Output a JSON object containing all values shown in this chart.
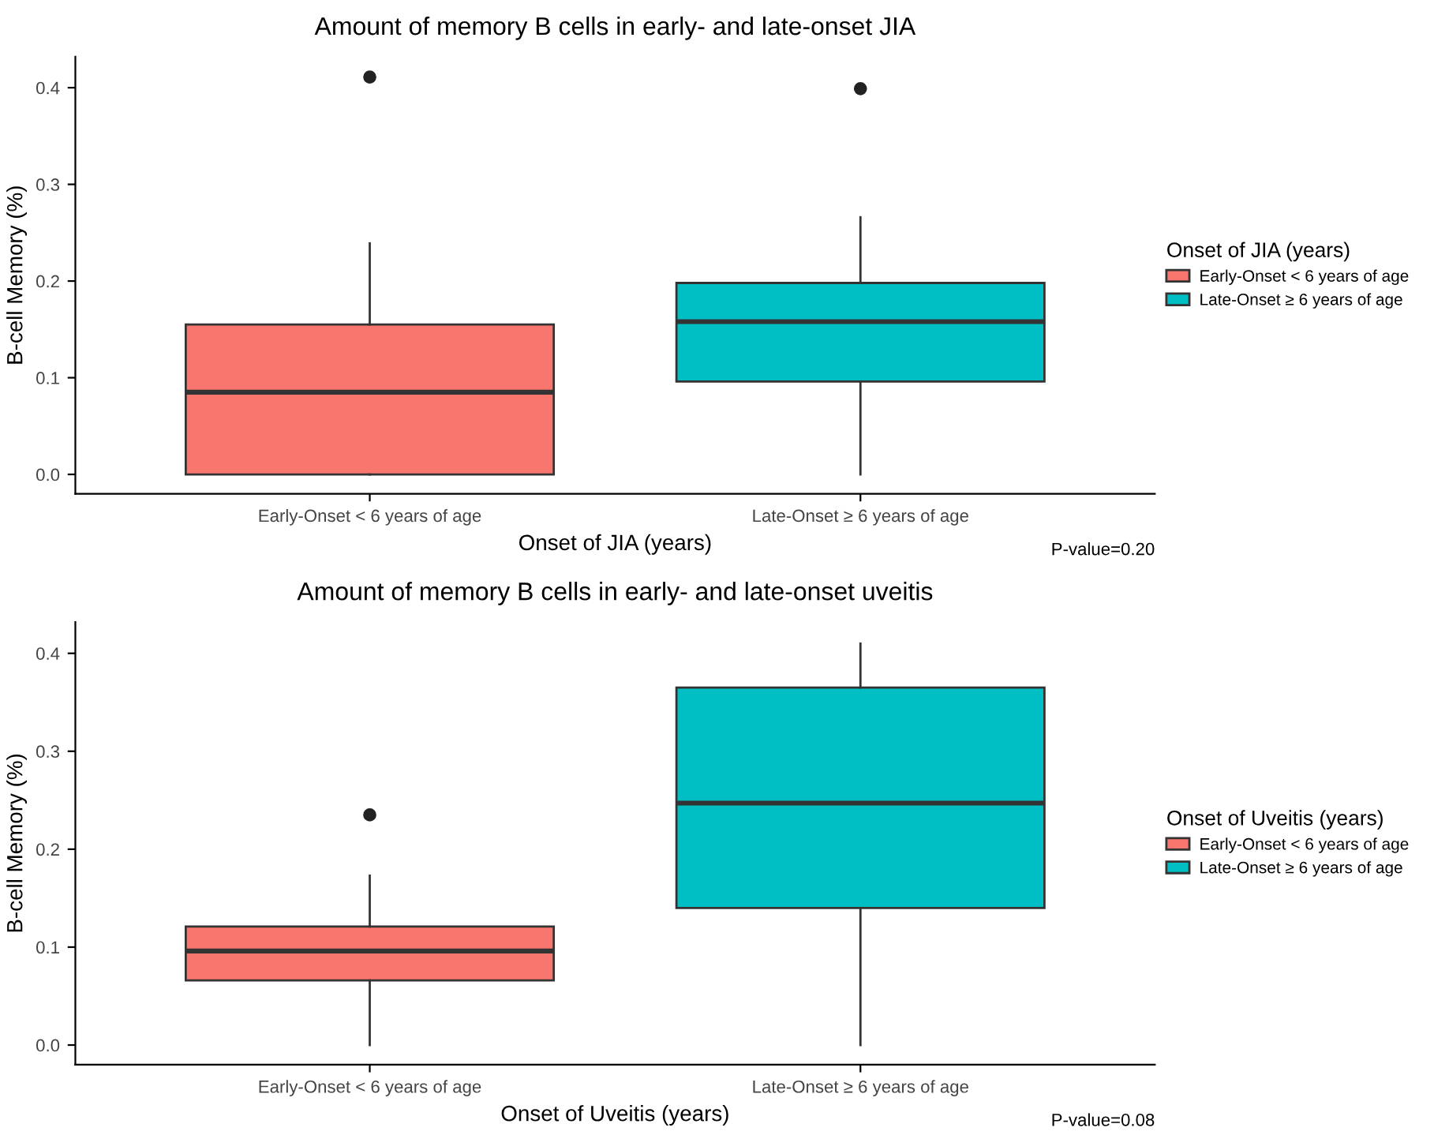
{
  "chart_data": [
    {
      "type": "box",
      "title": "Amount of memory B cells in early- and late-onset JIA",
      "xlabel": "Onset of JIA (years)",
      "ylabel": "B-cell Memory (%)",
      "legend_title": "Onset of JIA (years)",
      "legend": "right",
      "categories": [
        "Early-Onset < 6 years of age",
        "Late-Onset ≥ 6 years of age"
      ],
      "series": [
        {
          "name": "Early-Onset < 6 years of age",
          "color": "#f8766d",
          "boxes": [
            {
              "low": 0.0,
              "q1": 0.0,
              "median": 0.085,
              "q3": 0.155,
              "high": 0.239,
              "outliers": [
                0.411
              ]
            },
            null
          ]
        },
        {
          "name": "Late-Onset ≥ 6 years of age",
          "color": "#00bfc4",
          "boxes": [
            null,
            {
              "low": 0.0,
              "q1": 0.096,
              "median": 0.158,
              "q3": 0.198,
              "high": 0.266,
              "outliers": [
                0.399
              ]
            }
          ]
        }
      ],
      "ylim": [
        -0.02,
        0.432
      ],
      "yticks": [
        {
          "value": 0,
          "label": "0.0"
        },
        0.1,
        0.2,
        0.3,
        0.4
      ],
      "annotations": [
        "P-value=0.20"
      ]
    },
    {
      "type": "box",
      "title": "Amount of memory B cells in early- and late-onset uveitis",
      "xlabel": "Onset of Uveitis (years)",
      "ylabel": "B-cell Memory (%)",
      "legend_title": "Onset of Uveitis (years)",
      "legend": "right",
      "categories": [
        "Early-Onset < 6 years of age",
        "Late-Onset ≥ 6 years of age"
      ],
      "series": [
        {
          "name": "Early-Onset < 6 years of age",
          "color": "#f8766d",
          "boxes": [
            {
              "low": 0.0,
              "q1": 0.066,
              "median": 0.096,
              "q3": 0.121,
              "high": 0.173,
              "outliers": [
                0.235
              ]
            },
            null
          ]
        },
        {
          "name": "Late-Onset ≥ 6 years of age",
          "color": "#00bfc4",
          "boxes": [
            null,
            {
              "low": 0.0,
              "q1": 0.14,
              "median": 0.247,
              "q3": 0.365,
              "high": 0.41
            }
          ]
        }
      ],
      "ylim": [
        -0.02,
        0.432
      ],
      "yticks": [
        {
          "value": 0,
          "label": "0.0"
        },
        0.1,
        0.2,
        0.3,
        0.4
      ],
      "annotations": [
        "P-value=0.08"
      ]
    }
  ]
}
